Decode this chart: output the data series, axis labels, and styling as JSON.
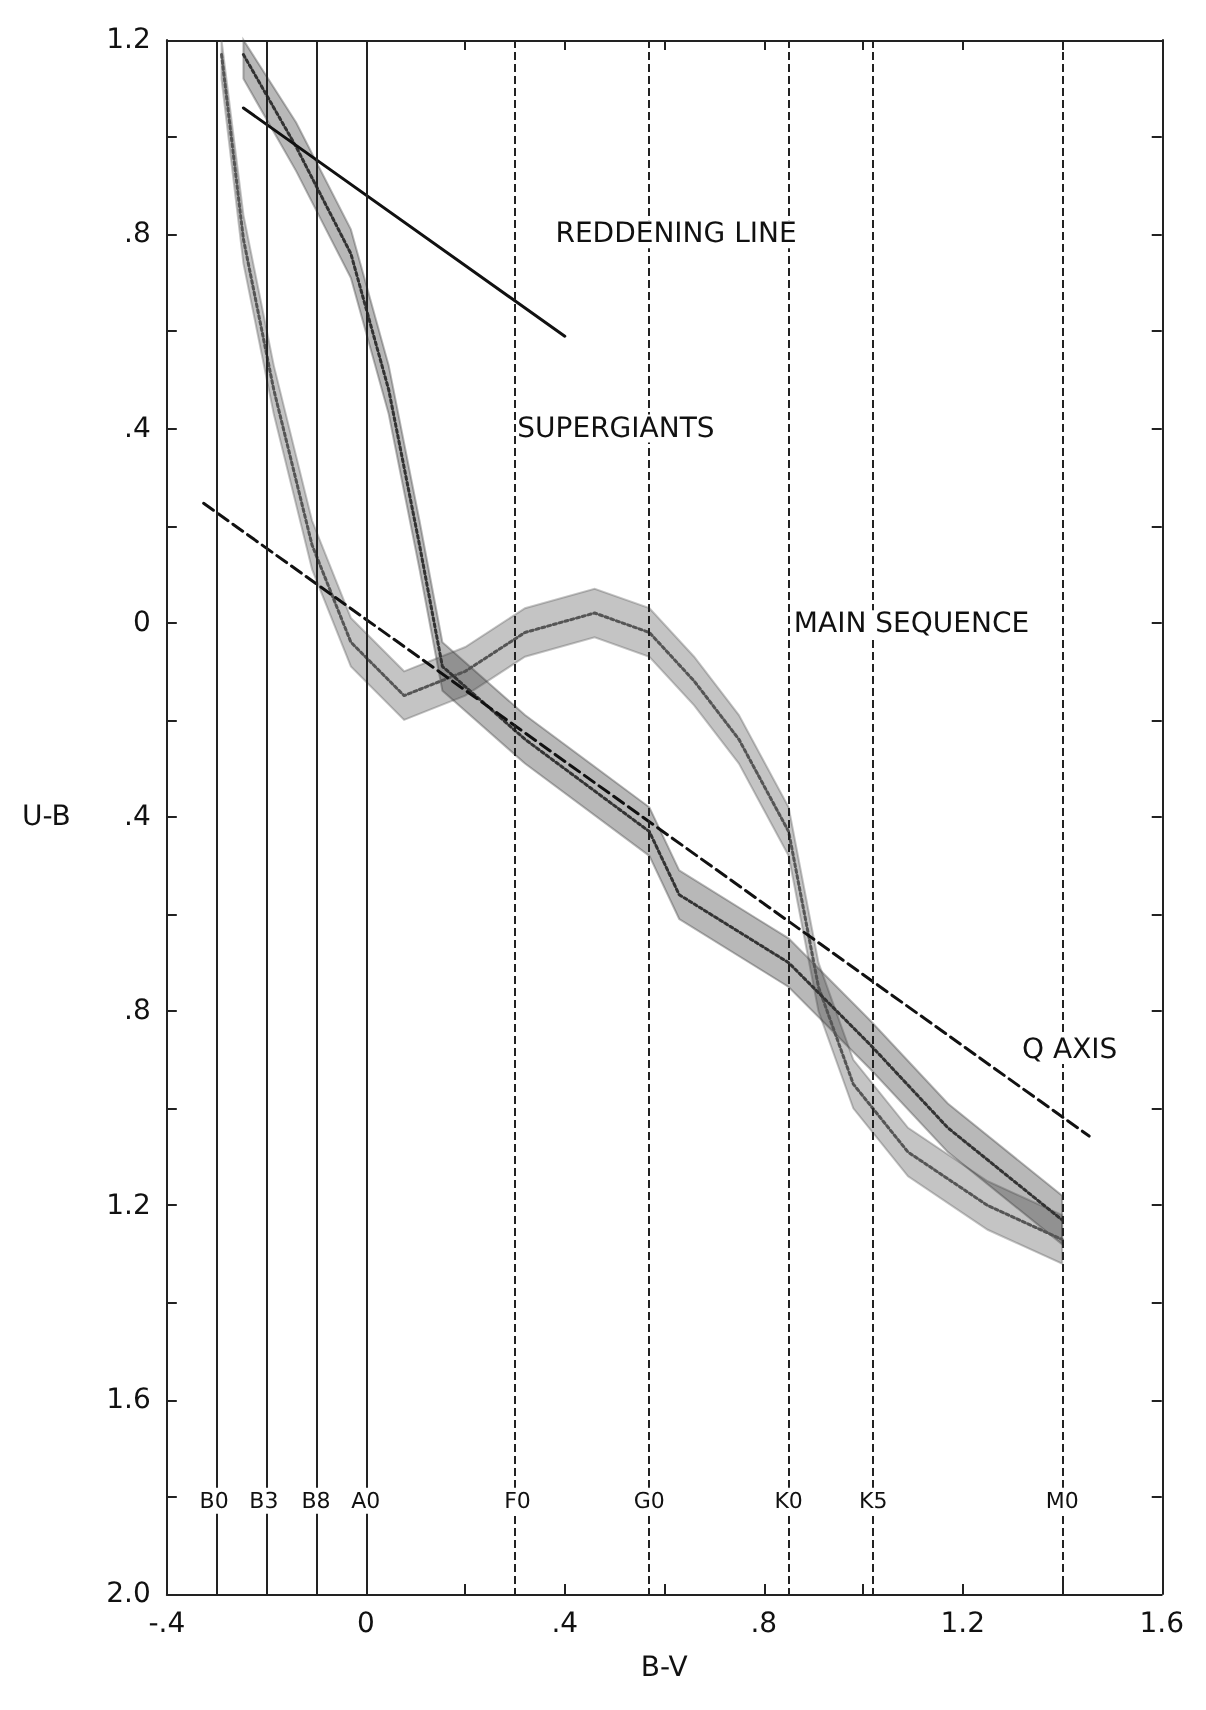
{
  "chart_data": {
    "type": "line",
    "xlabel": "B-V",
    "ylabel": "U-B",
    "xlim": [
      -0.4,
      1.6
    ],
    "ylim": [
      2.0,
      -1.2
    ],
    "xticks": [
      {
        "value": -0.4,
        "label": "-.4"
      },
      {
        "value": -0.2,
        "label": null
      },
      {
        "value": 0,
        "label": "0"
      },
      {
        "value": 0.2,
        "label": null
      },
      {
        "value": 0.4,
        "label": ".4"
      },
      {
        "value": 0.6,
        "label": null
      },
      {
        "value": 0.8,
        "label": ".8"
      },
      {
        "value": 1.0,
        "label": null
      },
      {
        "value": 1.2,
        "label": "1.2"
      },
      {
        "value": 1.4,
        "label": null
      },
      {
        "value": 1.6,
        "label": "1.6"
      }
    ],
    "yticks": [
      {
        "value": -1.2,
        "label": "1.2"
      },
      {
        "value": -1.0,
        "label": null
      },
      {
        "value": -0.8,
        "label": ".8"
      },
      {
        "value": -0.6,
        "label": null
      },
      {
        "value": -0.4,
        "label": ".4"
      },
      {
        "value": -0.2,
        "label": null
      },
      {
        "value": 0,
        "label": "0"
      },
      {
        "value": 0.2,
        "label": null
      },
      {
        "value": 0.4,
        "label": ".4"
      },
      {
        "value": 0.6,
        "label": null
      },
      {
        "value": 0.8,
        "label": ".8"
      },
      {
        "value": 1.0,
        "label": null
      },
      {
        "value": 1.2,
        "label": "1.2"
      },
      {
        "value": 1.4,
        "label": null
      },
      {
        "value": 1.6,
        "label": "1.6"
      },
      {
        "value": 1.8,
        "label": null
      },
      {
        "value": 2.0,
        "label": "2.0"
      }
    ],
    "grid": false,
    "marker": "none",
    "series": [
      {
        "color": "#555555",
        "line_style": "dotted",
        "x": [
          -0.29,
          -0.246,
          -0.185,
          -0.108,
          -0.03,
          0.077,
          0.2,
          0.32,
          0.46,
          0.57,
          0.66,
          0.75,
          0.85,
          0.91,
          0.98,
          1.09,
          1.25,
          1.4
        ],
        "values": [
          -1.17,
          -0.79,
          -0.48,
          -0.16,
          0.04,
          0.15,
          0.1,
          0.02,
          -0.02,
          0.02,
          0.12,
          0.24,
          0.43,
          0.75,
          0.95,
          1.09,
          1.2,
          1.27
        ],
        "lower": [
          -1.12,
          -0.74,
          -0.43,
          -0.11,
          0.09,
          0.2,
          0.15,
          0.07,
          0.03,
          0.07,
          0.17,
          0.29,
          0.48,
          0.8,
          1.0,
          1.14,
          1.25,
          1.32
        ],
        "upper": [
          -1.2,
          -0.84,
          -0.53,
          -0.21,
          -0.01,
          0.1,
          0.05,
          -0.03,
          -0.07,
          -0.03,
          0.07,
          0.19,
          0.38,
          0.7,
          0.9,
          1.04,
          1.15,
          1.22
        ]
      },
      {
        "color": "#333333",
        "line_style": "dotted",
        "x": [
          -0.246,
          -0.14,
          -0.03,
          0.046,
          0.108,
          0.154,
          0.32,
          0.57,
          0.63,
          0.85,
          1.015,
          1.17,
          1.4
        ],
        "values": [
          -1.17,
          -0.98,
          -0.76,
          -0.48,
          -0.16,
          0.09,
          0.24,
          0.43,
          0.56,
          0.7,
          0.87,
          1.04,
          1.23
        ],
        "lower": [
          -1.12,
          -0.93,
          -0.71,
          -0.43,
          -0.11,
          0.14,
          0.29,
          0.48,
          0.61,
          0.75,
          0.92,
          1.09,
          1.28
        ],
        "upper": [
          -1.2,
          -1.03,
          -0.81,
          -0.53,
          -0.21,
          0.04,
          0.19,
          0.38,
          0.51,
          0.65,
          0.82,
          0.99,
          1.18
        ]
      },
      {
        "color": "#111111",
        "line_style": "solid",
        "x": [
          -0.246,
          0.4
        ],
        "values": [
          -1.06,
          -0.59
        ]
      },
      {
        "color": "#111111",
        "line_style": "dashed",
        "x": [
          -0.326,
          1.454
        ],
        "values": [
          -0.246,
          1.057
        ]
      }
    ],
    "ref_lines": [
      {
        "axis": "x",
        "value": -0.305,
        "label": "B0",
        "color": "#222222",
        "line_style": "solid"
      },
      {
        "axis": "x",
        "value": -0.205,
        "label": "B3",
        "color": "#222222",
        "line_style": "solid"
      },
      {
        "axis": "x",
        "value": -0.1,
        "label": "B8",
        "color": "#222222",
        "line_style": "solid"
      },
      {
        "axis": "x",
        "value": 0,
        "label": "A0",
        "color": "#222222",
        "line_style": "solid"
      },
      {
        "axis": "x",
        "value": 0.305,
        "label": "F0",
        "color": "#222222",
        "line_style": "dashed"
      },
      {
        "axis": "x",
        "value": 0.57,
        "label": "G0",
        "color": "#222222",
        "line_style": "dashed"
      },
      {
        "axis": "x",
        "value": 0.85,
        "label": "K0",
        "color": "#222222",
        "line_style": "dashed"
      },
      {
        "axis": "x",
        "value": 1.02,
        "label": "K5",
        "color": "#222222",
        "line_style": "dashed"
      },
      {
        "axis": "x",
        "value": 1.4,
        "label": "M0",
        "color": "#222222",
        "line_style": "dashed"
      }
    ],
    "annotations": [
      "REDDENING LINE",
      "SUPERGIANTS",
      "MAIN SEQUENCE",
      {
        "text": "Q AXIS",
        "x": 1.415,
        "y": 0.88
      }
    ]
  }
}
